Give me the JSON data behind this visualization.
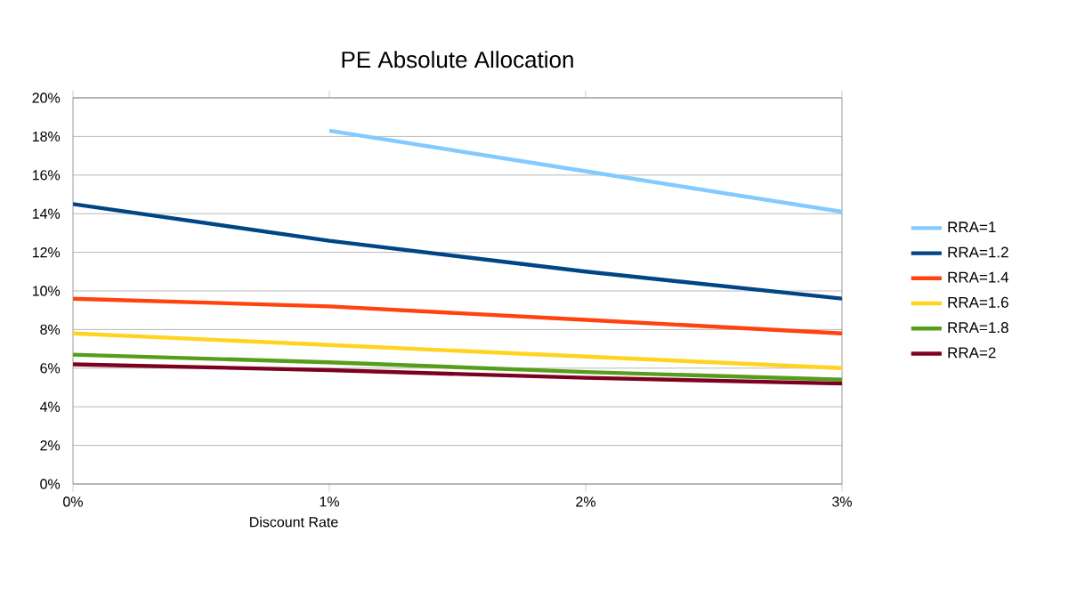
{
  "chart_data": {
    "type": "line",
    "title": "PE Absolute Allocation",
    "xlabel": "Discount Rate",
    "x": [
      0,
      1,
      2,
      3
    ],
    "xlim": [
      0,
      3
    ],
    "xticks": [
      {
        "value": 0,
        "label": "0%"
      },
      {
        "value": 1,
        "label": "1%"
      },
      {
        "value": 2,
        "label": "2%"
      },
      {
        "value": 3,
        "label": "3%"
      }
    ],
    "ylim": [
      0,
      20
    ],
    "yticks": [
      {
        "value": 0,
        "label": "0%"
      },
      {
        "value": 2,
        "label": "2%"
      },
      {
        "value": 4,
        "label": "4%"
      },
      {
        "value": 6,
        "label": "6%"
      },
      {
        "value": 8,
        "label": "8%"
      },
      {
        "value": 10,
        "label": "10%"
      },
      {
        "value": 12,
        "label": "12%"
      },
      {
        "value": 14,
        "label": "14%"
      },
      {
        "value": 16,
        "label": "16%"
      },
      {
        "value": 18,
        "label": "18%"
      },
      {
        "value": 20,
        "label": "20%"
      }
    ],
    "grid": "y",
    "legend": "right",
    "marker": "none",
    "line_style": "solid",
    "series": [
      {
        "name": "RRA=1",
        "color": "#83caff",
        "values": [
          null,
          18.3,
          16.2,
          14.1
        ]
      },
      {
        "name": "RRA=1.2",
        "color": "#004586",
        "values": [
          14.5,
          12.6,
          11.0,
          9.6
        ]
      },
      {
        "name": "RRA=1.4",
        "color": "#ff420e",
        "values": [
          9.6,
          9.2,
          8.5,
          7.8
        ]
      },
      {
        "name": "RRA=1.6",
        "color": "#ffd320",
        "values": [
          7.8,
          7.2,
          6.6,
          6.0
        ]
      },
      {
        "name": "RRA=1.8",
        "color": "#579d1c",
        "values": [
          6.7,
          6.3,
          5.8,
          5.4
        ]
      },
      {
        "name": "RRA=2",
        "color": "#7e0021",
        "values": [
          6.2,
          5.9,
          5.5,
          5.2
        ]
      }
    ]
  }
}
